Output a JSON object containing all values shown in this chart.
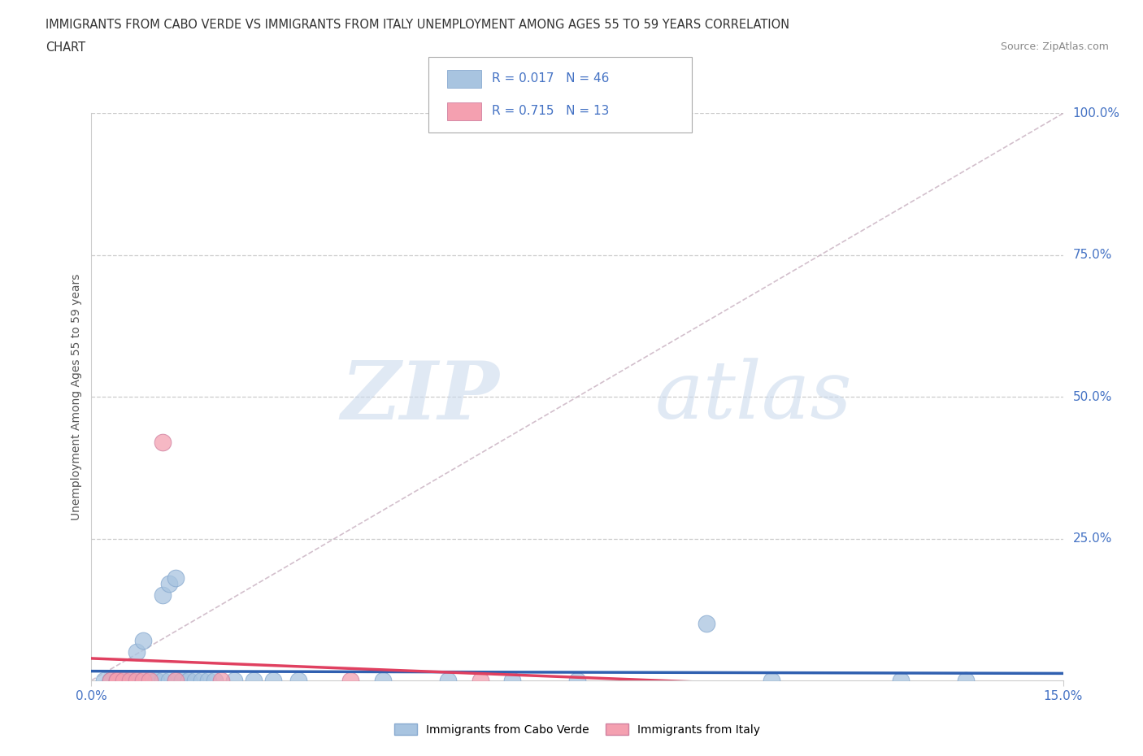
{
  "title_line1": "IMMIGRANTS FROM CABO VERDE VS IMMIGRANTS FROM ITALY UNEMPLOYMENT AMONG AGES 55 TO 59 YEARS CORRELATION",
  "title_line2": "CHART",
  "source": "Source: ZipAtlas.com",
  "ylabel": "Unemployment Among Ages 55 to 59 years",
  "xmin": 0.0,
  "xmax": 0.15,
  "ymin": 0.0,
  "ymax": 1.0,
  "ytick_labels": [
    "100.0%",
    "75.0%",
    "50.0%",
    "25.0%"
  ],
  "ytick_vals": [
    1.0,
    0.75,
    0.5,
    0.25
  ],
  "cabo_verde_color": "#a8c4e0",
  "cabo_verde_edge": "#88aad0",
  "italy_color": "#f4a0b0",
  "italy_edge": "#d080a0",
  "cabo_verde_R": 0.017,
  "cabo_verde_N": 46,
  "italy_R": 0.715,
  "italy_N": 13,
  "watermark_zip": "ZIP",
  "watermark_atlas": "atlas",
  "cabo_verde_trend_color": "#3060b0",
  "italy_trend_color": "#e04060",
  "ref_line_color": "#c8b0c0",
  "background_color": "#ffffff",
  "grid_color": "#cccccc",
  "tick_label_color": "#4472c4",
  "ylabel_color": "#555555",
  "title_color": "#333333",
  "source_color": "#888888",
  "cabo_verde_x": [
    0.002,
    0.003,
    0.003,
    0.004,
    0.004,
    0.005,
    0.005,
    0.005,
    0.006,
    0.006,
    0.006,
    0.007,
    0.007,
    0.007,
    0.008,
    0.008,
    0.009,
    0.009,
    0.01,
    0.01,
    0.011,
    0.011,
    0.012,
    0.012,
    0.013,
    0.013,
    0.014,
    0.014,
    0.015,
    0.015,
    0.016,
    0.017,
    0.018,
    0.019,
    0.022,
    0.025,
    0.028,
    0.032,
    0.045,
    0.055,
    0.065,
    0.075,
    0.095,
    0.105,
    0.125,
    0.135
  ],
  "cabo_verde_y": [
    0.0,
    0.0,
    0.0,
    0.0,
    0.0,
    0.0,
    0.0,
    0.0,
    0.0,
    0.0,
    0.0,
    0.0,
    0.05,
    0.0,
    0.0,
    0.07,
    0.0,
    0.0,
    0.0,
    0.0,
    0.0,
    0.15,
    0.17,
    0.0,
    0.0,
    0.18,
    0.0,
    0.0,
    0.0,
    0.0,
    0.0,
    0.0,
    0.0,
    0.0,
    0.0,
    0.0,
    0.0,
    0.0,
    0.0,
    0.0,
    0.0,
    0.0,
    0.1,
    0.0,
    0.0,
    0.0
  ],
  "italy_x": [
    0.003,
    0.004,
    0.004,
    0.005,
    0.006,
    0.007,
    0.008,
    0.009,
    0.011,
    0.013,
    0.02,
    0.04,
    0.06
  ],
  "italy_y": [
    0.0,
    0.0,
    0.0,
    0.0,
    0.0,
    0.0,
    0.0,
    0.0,
    0.42,
    0.0,
    0.0,
    0.0,
    0.0
  ]
}
